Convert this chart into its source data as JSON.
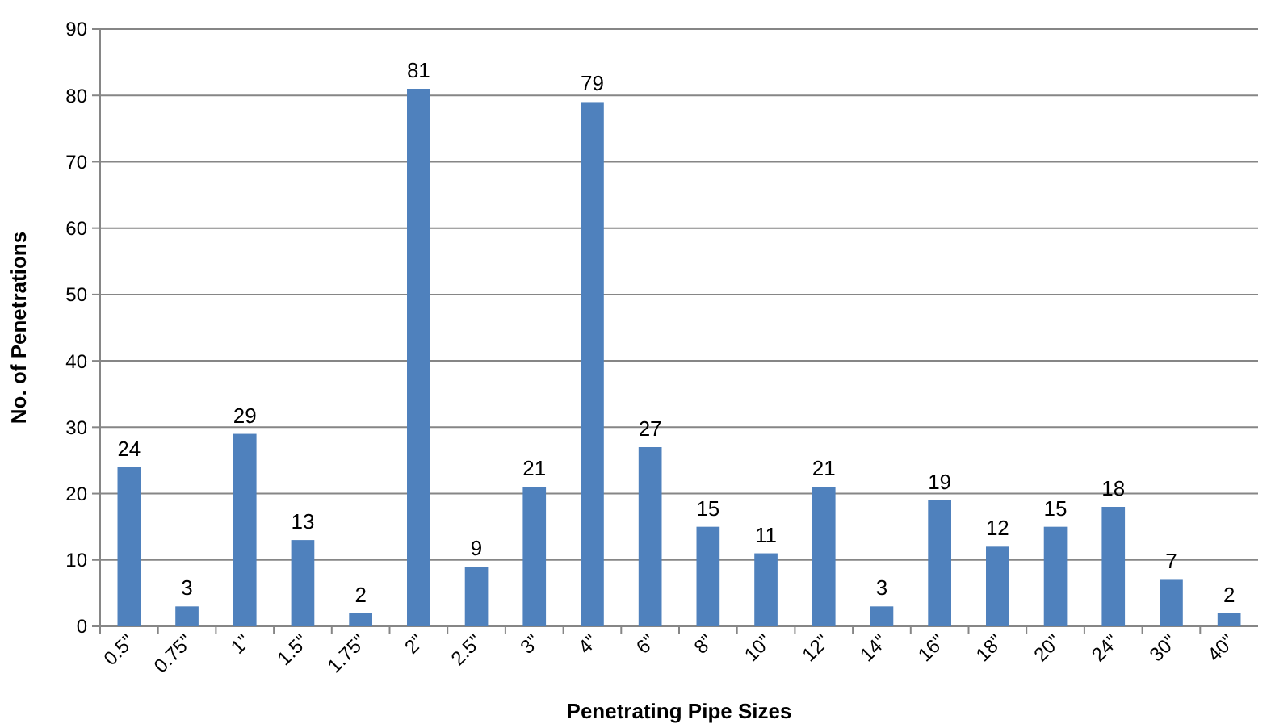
{
  "chart_data": {
    "type": "bar",
    "xlabel": "Penetrating Pipe Sizes",
    "ylabel": "No. of Penetrations",
    "categories": [
      "0.5\"",
      "0.75\"",
      "1\"",
      "1.5\"",
      "1.75\"",
      "2\"",
      "2.5\"",
      "3\"",
      "4\"",
      "6\"",
      "8\"",
      "10\"",
      "12\"",
      "14\"",
      "16\"",
      "18\"",
      "20\"",
      "24\"",
      "30\"",
      "40\""
    ],
    "values": [
      24,
      3,
      29,
      13,
      2,
      81,
      9,
      21,
      79,
      27,
      15,
      11,
      21,
      3,
      19,
      12,
      15,
      18,
      7,
      2
    ],
    "color": "#4f81bd",
    "ylim": [
      0,
      90
    ],
    "yticks": [
      0,
      10,
      20,
      30,
      40,
      50,
      60,
      70,
      80,
      90
    ],
    "grid": "y",
    "data_labels": true
  }
}
